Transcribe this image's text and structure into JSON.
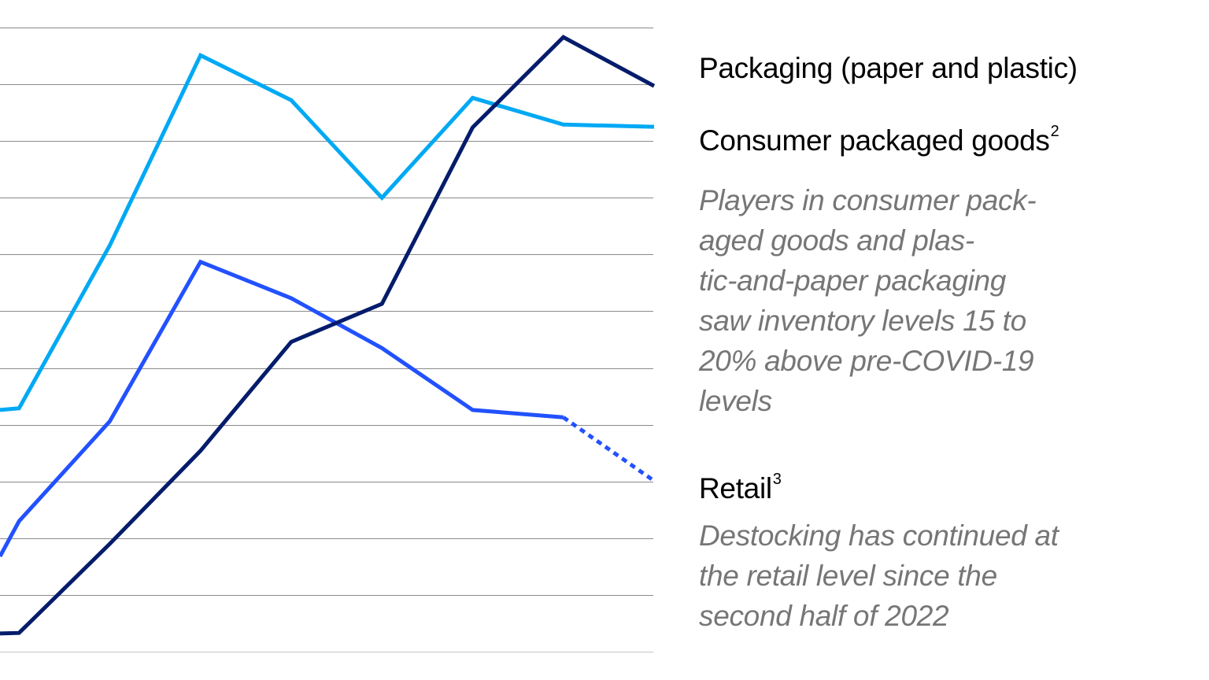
{
  "chart_data": {
    "type": "line",
    "title": "",
    "xlabel": "",
    "ylabel": "",
    "x": [
      -0.21,
      0,
      1,
      2,
      3,
      4,
      5,
      6,
      7
    ],
    "xlim": [
      -0.21,
      7
    ],
    "ylim": [
      0,
      11
    ],
    "grid": true,
    "gridlines": [
      0,
      1,
      2,
      3,
      4,
      5,
      6,
      7,
      8,
      9,
      10,
      11
    ],
    "legend_position": "right",
    "series": [
      {
        "name": "Consumer packaged goods",
        "color": "#00A9F4",
        "values": [
          4.26,
          4.29,
          7.16,
          10.51,
          9.72,
          8.0,
          9.76,
          9.29,
          9.25
        ],
        "dashed_from_index": null
      },
      {
        "name": "Retail",
        "color": "#2251FF",
        "values": [
          1.68,
          2.3,
          4.06,
          6.87,
          6.23,
          5.35,
          4.26,
          4.13,
          3.01
        ],
        "dashed_from_index": 7
      },
      {
        "name": "Packaging (paper and plastic)",
        "color": "#051C6B",
        "values": [
          0.32,
          0.33,
          1.9,
          3.54,
          5.46,
          6.13,
          9.24,
          10.83,
          9.97
        ],
        "dashed_from_index": null
      }
    ]
  },
  "legend": {
    "packaging": {
      "label_bold": "Packaging",
      "label_rest": "(paper and plastic)"
    },
    "cpg": {
      "label": "Consumer packaged goods",
      "footnote": "2",
      "note_lines": [
        "Players in consumer pack-",
        "aged goods and plas-",
        "tic-and-paper packaging",
        "saw inventory levels 15 to",
        "20% above pre-COVID-19",
        "levels"
      ]
    },
    "retail": {
      "label": "Retail",
      "footnote": "3",
      "note_lines": [
        "Destocking has continued at",
        "the retail level since the",
        "second half of 2022"
      ]
    }
  }
}
